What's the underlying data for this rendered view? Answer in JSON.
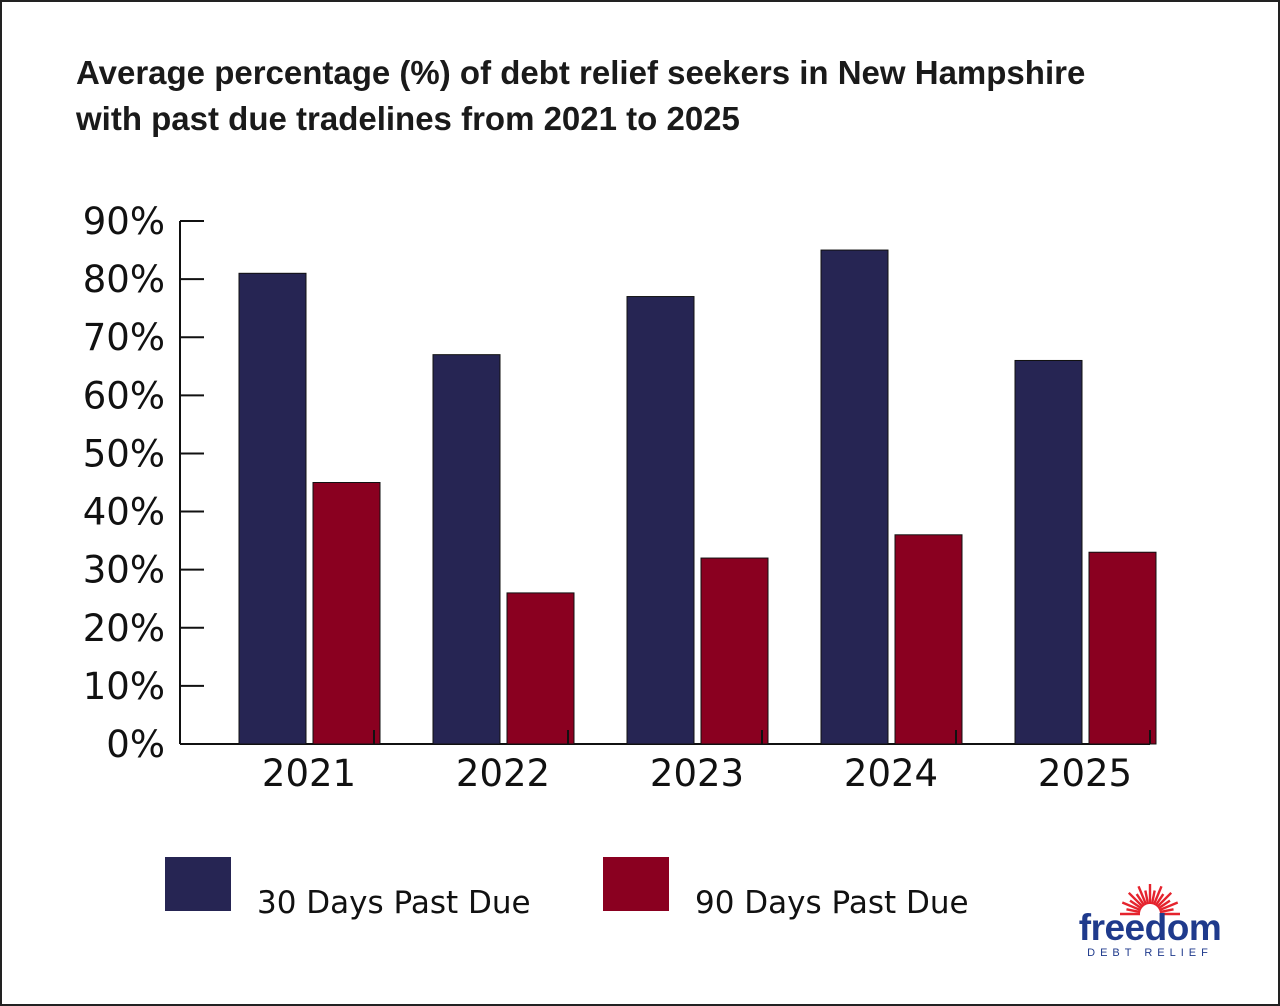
{
  "colors": {
    "series_30": "#262553",
    "series_90": "#8a0020",
    "brand_blue": "#1f3a8c",
    "brand_red": "#e5232d"
  },
  "logo": {
    "name": "freedom",
    "sub": "DEBT RELIEF",
    "icon": "sunburst-icon"
  },
  "chart_data": {
    "type": "bar",
    "title": "Average percentage (%) of debt relief seekers in New Hampshire with past due tradelines from 2021 to 2025",
    "title_lines": [
      "Average percentage (%) of debt relief seekers in New Hampshire",
      "with past due tradelines from 2021 to 2025"
    ],
    "xlabel": "",
    "ylabel": "",
    "categories": [
      "2021",
      "2022",
      "2023",
      "2024",
      "2025"
    ],
    "series": [
      {
        "name": "30 Days Past Due",
        "values": [
          81,
          67,
          77,
          85,
          66
        ]
      },
      {
        "name": "90 Days Past Due",
        "values": [
          45,
          26,
          32,
          36,
          33
        ]
      }
    ],
    "ylim": [
      0,
      90
    ],
    "yticks": [
      "0%",
      "10%",
      "20%",
      "30%",
      "40%",
      "50%",
      "60%",
      "70%",
      "80%",
      "90%"
    ],
    "grid": false,
    "legend_position": "bottom"
  }
}
